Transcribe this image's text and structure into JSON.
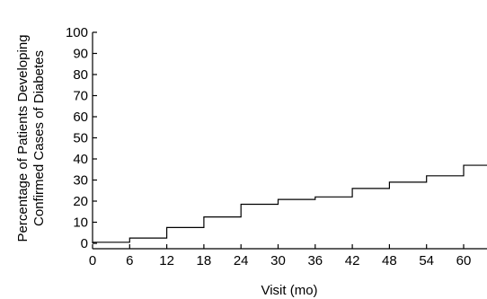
{
  "chart_data": {
    "type": "line",
    "step": "post",
    "xlabel": "Visit (mo)",
    "ylabel_lines": [
      "Percentage of Patients Developing",
      "Confirmed Cases of Diabetes"
    ],
    "xlim": [
      0,
      64
    ],
    "ylim": [
      0,
      100
    ],
    "xticks": [
      0,
      6,
      12,
      18,
      24,
      30,
      36,
      42,
      48,
      54,
      60
    ],
    "yticks": [
      0,
      10,
      20,
      30,
      40,
      50,
      60,
      70,
      80,
      90,
      100
    ],
    "grid": false,
    "x": [
      0,
      6,
      12,
      18,
      24,
      30,
      36,
      42,
      48,
      54,
      60,
      64
    ],
    "y": [
      0.5,
      2.5,
      7.5,
      12.5,
      18.5,
      20.8,
      22.0,
      26.0,
      29.0,
      32.0,
      37.0,
      37.0
    ]
  }
}
